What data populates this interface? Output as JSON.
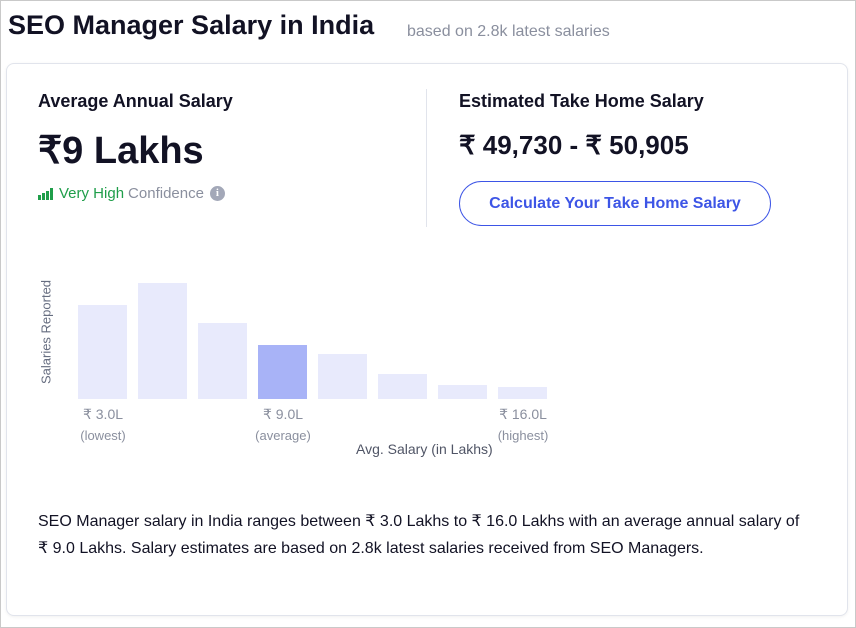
{
  "header": {
    "title": "SEO Manager Salary in India",
    "subtitle": "based on 2.8k latest salaries"
  },
  "average": {
    "label": "Average Annual Salary",
    "value": "₹9 Lakhs",
    "confidence_strong": "Very High",
    "confidence_rest": "Confidence",
    "info_icon": "i"
  },
  "take_home": {
    "label": "Estimated Take Home Salary",
    "value": "₹ 49,730 - ₹ 50,905",
    "button_label": "Calculate Your Take Home Salary"
  },
  "chart": {
    "ylabel": "Salaries Reported",
    "xlabel": "Avg. Salary (in Lakhs)",
    "ticks": [
      {
        "value": "₹ 3.0L",
        "sub": "(lowest)"
      },
      {
        "value": "₹ 9.0L",
        "sub": "(average)"
      },
      {
        "value": "₹ 16.0L",
        "sub": "(highest)"
      }
    ],
    "highlight_color": "#a8b3f7",
    "bar_color": "#e8eafc"
  },
  "chart_data": {
    "type": "bar",
    "ylabel": "Salaries Reported",
    "xlabel": "Avg. Salary (in Lakhs)",
    "values": [
      94,
      116,
      76,
      54,
      45,
      25,
      14,
      12
    ],
    "highlight_index": 3
  },
  "description": "SEO Manager salary in India ranges between ₹ 3.0 Lakhs to ₹ 16.0 Lakhs with an average annual salary of ₹ 9.0 Lakhs. Salary estimates are based on 2.8k latest salaries received from SEO Managers."
}
